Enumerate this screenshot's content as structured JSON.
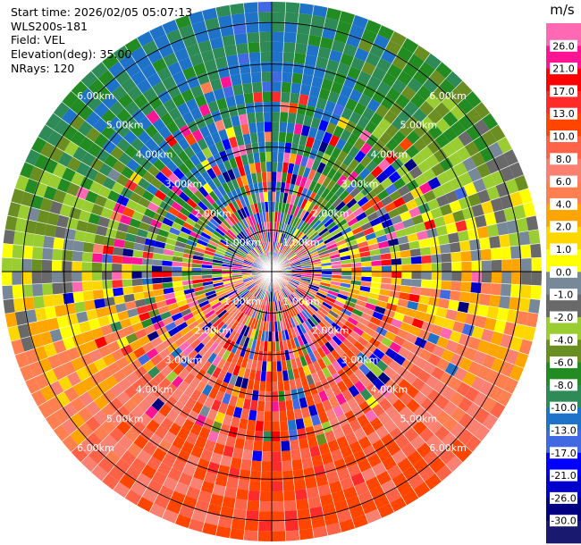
{
  "header": {
    "start_time": "Start time: 2026/02/05 05:07:13",
    "instrument": "WLS200s-181",
    "field": "Field: VEL",
    "elevation": "Elevation(deg): 35.00",
    "nrays": "NRays: 120"
  },
  "chart_data": {
    "type": "heatmap",
    "projection": "polar-ppi",
    "field": "VEL",
    "units": "m/s",
    "n_rays": 120,
    "n_gates": 27,
    "max_range_km": 6.5,
    "range_rings_km": [
      1,
      2,
      3,
      4,
      5,
      6
    ],
    "range_ring_labels": [
      "1.00km",
      "2.00km",
      "3.00km",
      "4.00km",
      "5.00km",
      "6.00km"
    ],
    "label_bearings_deg": [
      45,
      135,
      225,
      315
    ],
    "colorbar": {
      "title": "m/s",
      "bounds": [
        30.0,
        26.0,
        21.0,
        17.0,
        13.0,
        10.0,
        8.0,
        6.0,
        4.0,
        2.0,
        1.0,
        0.0,
        -1.0,
        -2.0,
        -4.0,
        -6.0,
        -8.0,
        -10.0,
        -13.0,
        -17.0,
        -21.0,
        -26.0,
        -30.0
      ],
      "tick_labels": [
        "26.0",
        "21.0",
        "17.0",
        "13.0",
        "10.0",
        "8.0",
        "6.0",
        "4.0",
        "2.0",
        "1.0",
        "0.0",
        "-1.0",
        "-2.0",
        "-4.0",
        "-6.0",
        "-8.0",
        "-10.0",
        "-13.0",
        "-17.0",
        "-21.0",
        "-26.0",
        "-30.0"
      ],
      "colors": [
        "#ff69b4",
        "#ff1493",
        "#ff0000",
        "#ff2a2a",
        "#ff4500",
        "#ff6347",
        "#fa8072",
        "#ff7f50",
        "#ffa500",
        "#ffd700",
        "#ffff00",
        "#778899",
        "#696969",
        "#9acd32",
        "#6b8e23",
        "#228b22",
        "#2e8b57",
        "#1e73c8",
        "#4169e1",
        "#0000ff",
        "#0000cd",
        "#000080",
        "#191970"
      ]
    },
    "approx_velocity_by_azimuth": {
      "azimuth_deg": [
        0,
        45,
        90,
        135,
        180,
        225,
        270,
        315
      ],
      "velocity_ms": [
        -11,
        -6,
        1,
        9,
        12,
        7,
        -1,
        -9
      ]
    }
  }
}
